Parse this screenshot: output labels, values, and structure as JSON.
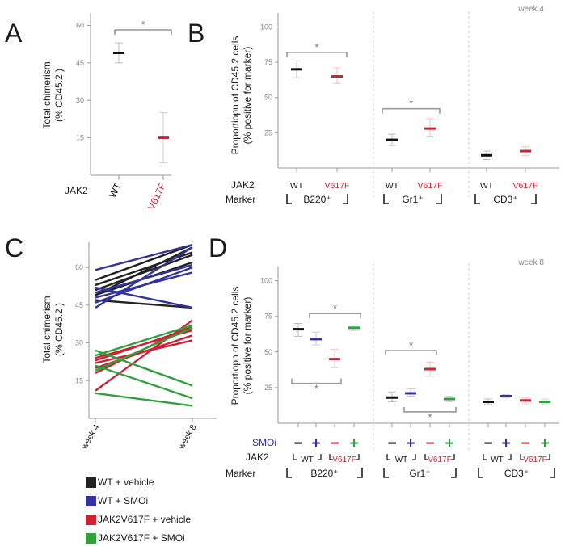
{
  "chart_data": [
    {
      "type": "scatter",
      "panel": "A",
      "ylabel": [
        "Total chimerism",
        "(% CD45.2 )"
      ],
      "ylim": [
        0,
        65
      ],
      "yticks": [
        15,
        30,
        45,
        60
      ],
      "row_label": "JAK2",
      "categories": [
        "WT",
        "V617F"
      ],
      "means": [
        49,
        15
      ],
      "errors": [
        [
          45,
          53
        ],
        [
          5,
          25
        ]
      ],
      "colors": [
        "#111111",
        "#cc2233"
      ],
      "significance": [
        {
          "from": 0,
          "to": 1,
          "label": "*"
        }
      ]
    },
    {
      "type": "scatter",
      "panel": "B",
      "subtitle": "week 4",
      "ylabel": [
        "Proportiopn of CD45.2 cells",
        "(% positive for marker)"
      ],
      "ylim": [
        0,
        110
      ],
      "yticks": [
        25,
        50,
        75,
        100
      ],
      "row_labels": [
        "JAK2",
        "Marker"
      ],
      "groups": [
        {
          "marker": "B220⁺",
          "categories": [
            "WT",
            "V617F"
          ],
          "means": [
            70,
            65
          ],
          "errors": [
            [
              64,
              76
            ],
            [
              60,
              71
            ]
          ],
          "significance": {
            "from": 0,
            "to": 1,
            "label": "*",
            "y": 82
          }
        },
        {
          "marker": "Gr1⁺",
          "categories": [
            "WT",
            "V617F"
          ],
          "means": [
            20,
            28
          ],
          "errors": [
            [
              16,
              24
            ],
            [
              22,
              35
            ]
          ],
          "significance": {
            "from": 0,
            "to": 1,
            "label": "*",
            "y": 42
          }
        },
        {
          "marker": "CD3⁺",
          "categories": [
            "WT",
            "V617F"
          ],
          "means": [
            9,
            12
          ],
          "errors": [
            [
              6,
              12
            ],
            [
              9,
              15
            ]
          ]
        }
      ],
      "colors": [
        "#111111",
        "#cc2233"
      ]
    },
    {
      "type": "line",
      "panel": "C",
      "ylabel": [
        "Total chimerism",
        "(% CD45.2 )"
      ],
      "x": [
        "week 4",
        "week 8"
      ],
      "ylim": [
        0,
        70
      ],
      "yticks": [
        15,
        30,
        45,
        60
      ],
      "series": [
        {
          "name": "WT + vehicle",
          "color": "#222222",
          "lines": [
            [
              47,
              44
            ],
            [
              49,
              62
            ],
            [
              51,
              65
            ],
            [
              53,
              66
            ],
            [
              55,
              69
            ],
            [
              49,
              68
            ]
          ]
        },
        {
          "name": "WT + SMOi",
          "color": "#33339a",
          "lines": [
            [
              59,
              69
            ],
            [
              44,
              68
            ],
            [
              46,
              60
            ],
            [
              48,
              58
            ],
            [
              50,
              61
            ],
            [
              52,
              44
            ]
          ]
        },
        {
          "name": "JAK2V617F + vehicle",
          "color": "#cc2233",
          "lines": [
            [
              11,
              39
            ],
            [
              18,
              37
            ],
            [
              20,
              33
            ],
            [
              22,
              31
            ],
            [
              23,
              36
            ],
            [
              24,
              35
            ]
          ]
        },
        {
          "name": "JAK2V617F + SMOi",
          "color": "#33a040",
          "lines": [
            [
              27,
              13
            ],
            [
              21,
              8
            ],
            [
              10,
              5
            ],
            [
              25,
              37
            ],
            [
              19,
              36
            ]
          ]
        }
      ],
      "legend": [
        "WT + vehicle",
        "WT + SMOi",
        "JAK2V617F + vehicle",
        "JAK2V617F + SMOi"
      ]
    },
    {
      "type": "scatter",
      "panel": "D",
      "subtitle": "week 8",
      "ylabel": [
        "Proportiopn of CD45.2 cells",
        "(% positive for marker)"
      ],
      "ylim": [
        0,
        110
      ],
      "yticks": [
        25,
        50,
        75,
        100
      ],
      "row_labels": [
        "SMOi",
        "JAK2",
        "Marker"
      ],
      "smoi_signs": [
        "−",
        "+",
        "−",
        "+"
      ],
      "jak2_labels": [
        "WT",
        "V617F"
      ],
      "groups": [
        {
          "marker": "B220⁺",
          "means": [
            66,
            59,
            45,
            67
          ],
          "errors": [
            [
              61,
              70
            ],
            [
              55,
              64
            ],
            [
              39,
              52
            ],
            [
              65,
              69
            ]
          ]
        },
        {
          "marker": "Gr1⁺",
          "means": [
            18,
            21,
            38,
            17
          ],
          "errors": [
            [
              15,
              22
            ],
            [
              19,
              24
            ],
            [
              33,
              43
            ],
            [
              15,
              19
            ]
          ]
        },
        {
          "marker": "CD3⁺",
          "means": [
            15,
            19,
            16,
            15
          ],
          "errors": [
            [
              13,
              17
            ],
            [
              18,
              20
            ],
            [
              13,
              18
            ],
            [
              13,
              17
            ]
          ]
        }
      ],
      "colors": [
        "#111111",
        "#33339a",
        "#cc2233",
        "#33a040"
      ],
      "significance": [
        {
          "group": 0,
          "from": 1,
          "to": 3,
          "y": 77,
          "label": "*",
          "below": false
        },
        {
          "group": 0,
          "from": 0,
          "to": 2,
          "y": 28,
          "label": "*",
          "below": true
        },
        {
          "group": 1,
          "from": 0,
          "to": 2,
          "y": 51,
          "label": "*",
          "below": false
        },
        {
          "group": 1,
          "from": 1,
          "to": 3,
          "y": 8,
          "label": "*",
          "below": true
        }
      ]
    }
  ],
  "panel_letters": [
    "A",
    "B",
    "C",
    "D"
  ],
  "row_labels": {
    "jak2": "JAK2",
    "marker": "Marker",
    "smoi": "SMOi"
  }
}
